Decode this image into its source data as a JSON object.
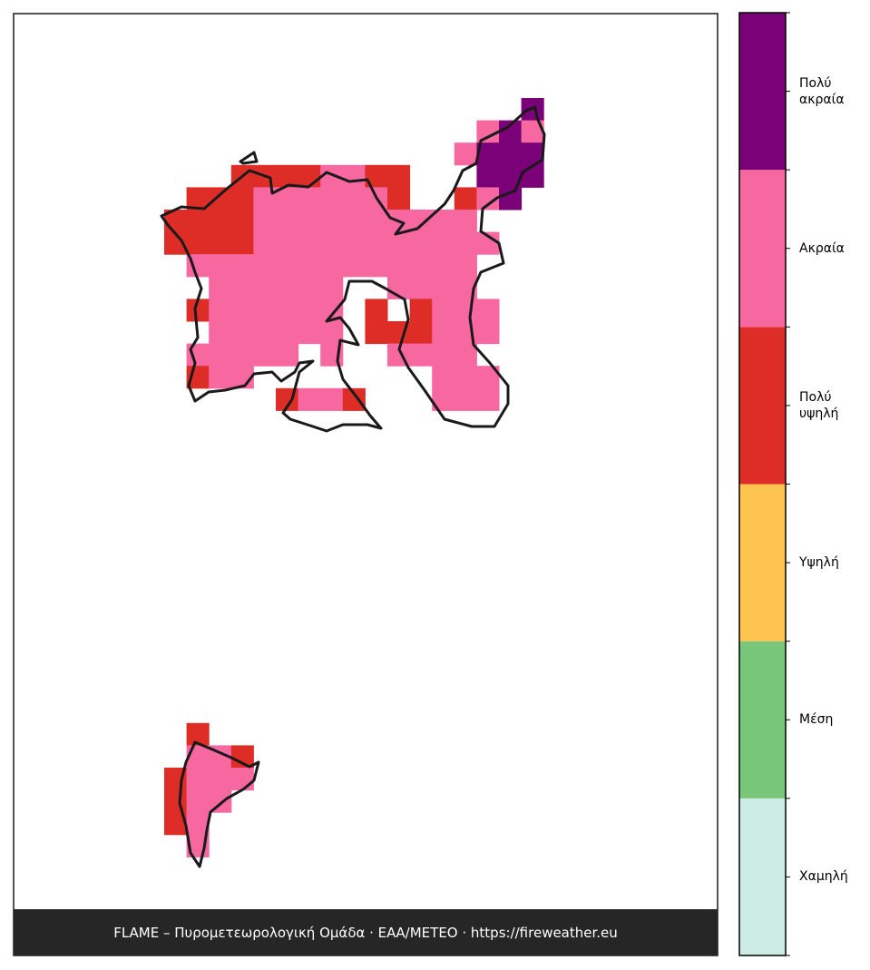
{
  "legend": {
    "classes": [
      {
        "label": "Χαμηλή",
        "color": "#cdece3"
      },
      {
        "label": "Μέση",
        "color": "#78c679"
      },
      {
        "label": "Υψηλή",
        "color": "#fec44f"
      },
      {
        "label": "Πολύ υψηλή",
        "color": "#de2d26"
      },
      {
        "label": "Ακραία",
        "color": "#f768a1"
      },
      {
        "label": "Πολύ ακραία",
        "color": "#7a0177"
      }
    ]
  },
  "footer": {
    "text": "FLAME – Πυρομετεωρολογική Ομάδα · ΕΑΑ/METEO · https://fireweather.eu"
  }
}
